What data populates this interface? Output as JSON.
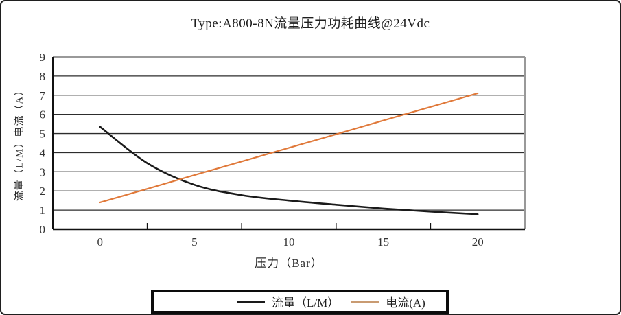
{
  "title": "Type:A800-8N流量压力功耗曲线@24Vdc",
  "chart_data": {
    "type": "line",
    "title": "Type:A800-8N流量压力功耗曲线@24Vdc",
    "xlabel": "压力（Bar）",
    "ylabel": "流量（L/M）电流（A）",
    "x_tick_labels": [
      "0",
      "5",
      "10",
      "15",
      "20"
    ],
    "x_ticks": [
      0,
      5,
      10,
      15,
      20
    ],
    "y_ticks": [
      0,
      1,
      2,
      3,
      4,
      5,
      6,
      7,
      8,
      9
    ],
    "xlim": [
      -2.5,
      22.5
    ],
    "ylim": [
      0,
      9
    ],
    "grid": "horizontal",
    "boundary_ticks": [
      2.5,
      7.5,
      12.5,
      17.5
    ],
    "legend_position": "bottom",
    "x": [
      0,
      2.5,
      5,
      7.5,
      10,
      12.5,
      15,
      17.5,
      20
    ],
    "series": [
      {
        "name": "流量（L/M）",
        "color": "#1a1a1a",
        "legend_color": "#1a1a1a",
        "smooth": true,
        "values": [
          5.35,
          3.45,
          2.32,
          1.78,
          1.5,
          1.28,
          1.08,
          0.92,
          0.78
        ]
      },
      {
        "name": "电流(A)",
        "color": "#E0793A",
        "legend_color": "#C99B72",
        "smooth": false,
        "values": [
          1.4,
          2.11,
          2.83,
          3.54,
          4.25,
          4.96,
          5.68,
          6.39,
          7.1
        ]
      }
    ],
    "axis_colors": {
      "grid_line": "#2d2d2d",
      "left_bottom_axis": "#111111",
      "top_right_border": "#999999",
      "tick_label": "#333333"
    }
  }
}
